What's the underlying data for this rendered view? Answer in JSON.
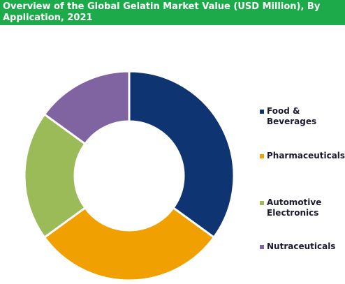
{
  "chart_data": {
    "type": "donut",
    "title": "Overview of the Global Gelatin Market Value (USD Million), By Application, 2021",
    "categories": [
      "Food & Beverages",
      "Pharmaceuticals",
      "Automotive Electronics",
      "Nutraceuticals"
    ],
    "values": [
      35,
      30,
      20,
      15
    ],
    "colors": [
      "#0e3472",
      "#f0a000",
      "#9bbb59",
      "#8064a2"
    ]
  }
}
